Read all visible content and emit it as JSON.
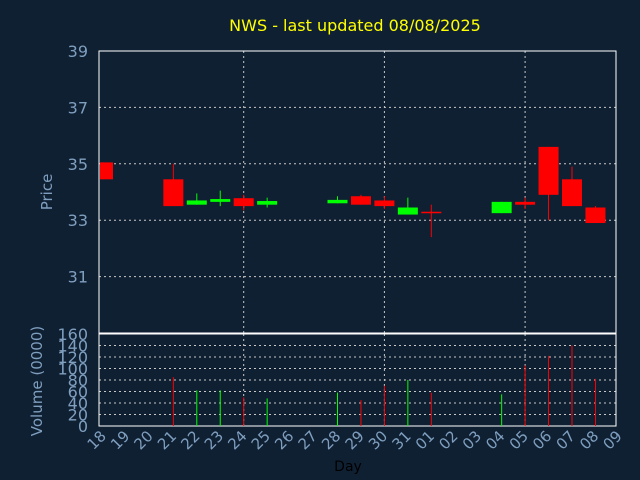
{
  "colors": {
    "background": "#102033",
    "plot_bg": "#102033",
    "frame": "#ffffff",
    "grid": "#c8c8c8",
    "title": "#ffff00",
    "axis_text": "#7f9fbf",
    "axis_title_top": "#7f9fbf",
    "axis_title_day": "#000000",
    "up": "#00ff00",
    "down": "#ff0000"
  },
  "chart_data": [
    {
      "type": "candlestick",
      "title": "NWS - last updated 08/08/2025",
      "ylabel": "Price",
      "ylim": [
        29,
        39
      ],
      "yticks": [
        39,
        37,
        35,
        33,
        31
      ],
      "grid": true,
      "categories": [
        "18",
        "19",
        "20",
        "21",
        "22",
        "23",
        "24",
        "25",
        "26",
        "27",
        "28",
        "29",
        "30",
        "31",
        "01",
        "02",
        "03",
        "04",
        "05",
        "06",
        "07",
        "08",
        "09"
      ],
      "candles": [
        {
          "day": "18",
          "open": 35.05,
          "high": 35.05,
          "low": 34.45,
          "close": 34.45
        },
        {
          "day": "21",
          "open": 34.45,
          "high": 35.0,
          "low": 33.5,
          "close": 33.5
        },
        {
          "day": "22",
          "open": 33.55,
          "high": 33.95,
          "low": 33.55,
          "close": 33.7
        },
        {
          "day": "23",
          "open": 33.65,
          "high": 34.05,
          "low": 33.5,
          "close": 33.75
        },
        {
          "day": "24",
          "open": 33.78,
          "high": 33.9,
          "low": 33.35,
          "close": 33.5
        },
        {
          "day": "25",
          "open": 33.55,
          "high": 33.8,
          "low": 33.45,
          "close": 33.68
        },
        {
          "day": "28",
          "open": 33.6,
          "high": 33.85,
          "low": 33.6,
          "close": 33.72
        },
        {
          "day": "29",
          "open": 33.85,
          "high": 33.9,
          "low": 33.55,
          "close": 33.55
        },
        {
          "day": "30",
          "open": 33.7,
          "high": 33.85,
          "low": 33.4,
          "close": 33.5
        },
        {
          "day": "31",
          "open": 33.2,
          "high": 33.8,
          "low": 33.2,
          "close": 33.45
        },
        {
          "day": "01",
          "open": 33.3,
          "high": 33.55,
          "low": 32.4,
          "close": 33.25
        },
        {
          "day": "04",
          "open": 33.25,
          "high": 33.65,
          "low": 33.25,
          "close": 33.65
        },
        {
          "day": "05",
          "open": 33.65,
          "high": 33.8,
          "low": 33.4,
          "close": 33.55
        },
        {
          "day": "06",
          "open": 35.6,
          "high": 35.6,
          "low": 33.0,
          "close": 33.9
        },
        {
          "day": "07",
          "open": 34.45,
          "high": 34.9,
          "low": 33.5,
          "close": 33.5
        },
        {
          "day": "08",
          "open": 33.45,
          "high": 33.5,
          "low": 32.9,
          "close": 32.9
        }
      ]
    },
    {
      "type": "bar",
      "ylabel": "Volume (0000)",
      "xlabel": "Day",
      "ylim": [
        0,
        160
      ],
      "yticks": [
        160,
        140,
        120,
        100,
        80,
        60,
        40,
        20,
        0
      ],
      "grid": true,
      "categories": [
        "18",
        "19",
        "20",
        "21",
        "22",
        "23",
        "24",
        "25",
        "26",
        "27",
        "28",
        "29",
        "30",
        "31",
        "01",
        "02",
        "03",
        "04",
        "05",
        "06",
        "07",
        "08",
        "09"
      ],
      "bars": [
        {
          "day": "21",
          "value": 85,
          "dir": "down"
        },
        {
          "day": "22",
          "value": 62,
          "dir": "up"
        },
        {
          "day": "23",
          "value": 62,
          "dir": "up"
        },
        {
          "day": "24",
          "value": 50,
          "dir": "down"
        },
        {
          "day": "25",
          "value": 48,
          "dir": "up"
        },
        {
          "day": "28",
          "value": 58,
          "dir": "up"
        },
        {
          "day": "29",
          "value": 45,
          "dir": "down"
        },
        {
          "day": "30",
          "value": 70,
          "dir": "down"
        },
        {
          "day": "31",
          "value": 80,
          "dir": "up"
        },
        {
          "day": "01",
          "value": 58,
          "dir": "down"
        },
        {
          "day": "04",
          "value": 55,
          "dir": "up"
        },
        {
          "day": "05",
          "value": 105,
          "dir": "down"
        },
        {
          "day": "06",
          "value": 122,
          "dir": "down"
        },
        {
          "day": "07",
          "value": 140,
          "dir": "down"
        },
        {
          "day": "08",
          "value": 82,
          "dir": "down"
        }
      ]
    }
  ]
}
